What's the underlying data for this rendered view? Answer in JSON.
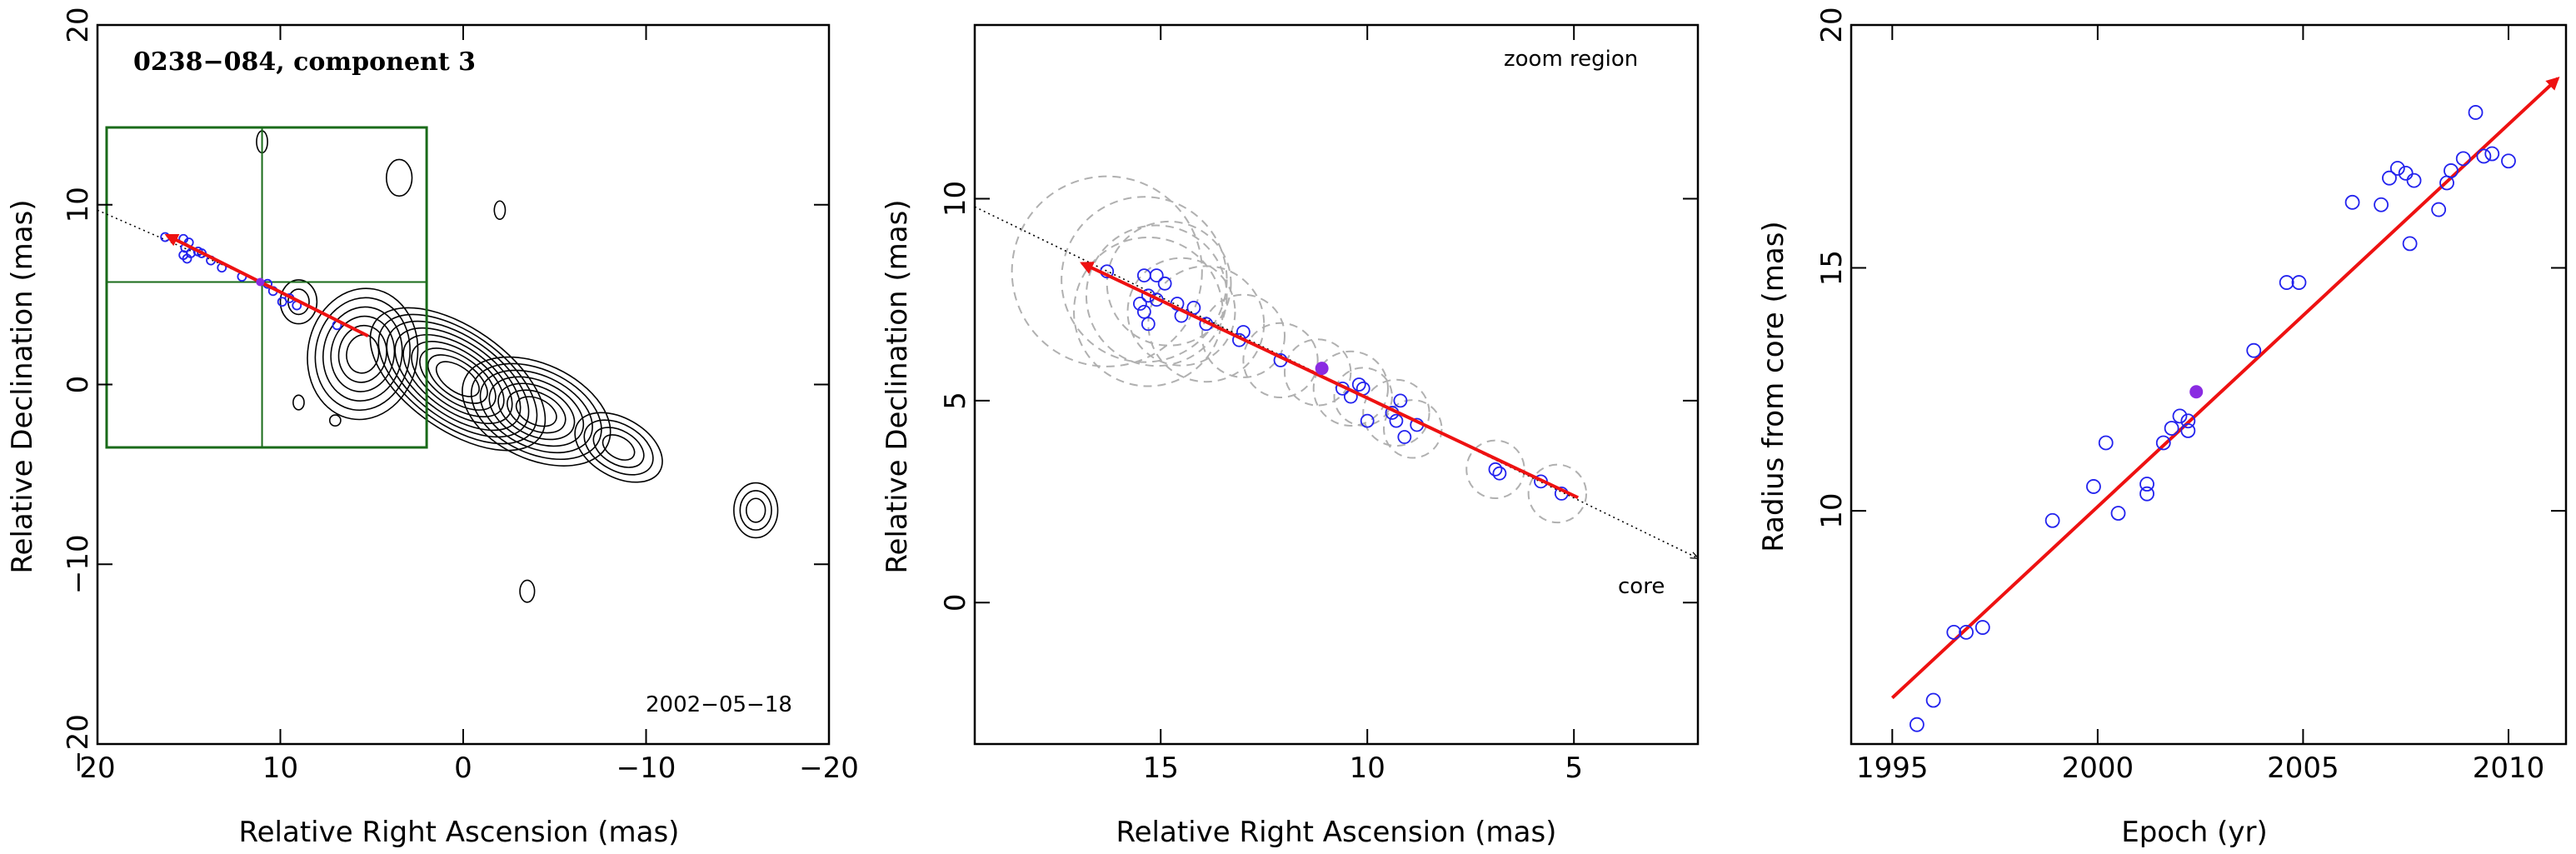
{
  "chart_data": [
    {
      "type": "scatter",
      "panel": "contour-map",
      "title": "0238−084, component 3",
      "date_label": "2002−05−18",
      "xlabel": "Relative Right Ascension (mas)",
      "ylabel": "Relative Declination (mas)",
      "xlim": [
        20,
        -20
      ],
      "ylim": [
        -20,
        20
      ],
      "xticks": [
        20,
        10,
        0,
        -10,
        -20
      ],
      "xtick_labels": [
        "20",
        "10",
        "0",
        "−10",
        "−20"
      ],
      "yticks": [
        -20,
        -10,
        0,
        10,
        20
      ],
      "ytick_labels": [
        "−20",
        "−10",
        "0",
        "10",
        "20"
      ],
      "zoom_box": {
        "x": [
          19.5,
          2
        ],
        "y": [
          -3.5,
          14.3
        ]
      },
      "zoom_cross": {
        "x": 11,
        "y": 5.7
      },
      "jet_line": {
        "from": [
          20,
          9.7
        ],
        "to": [
          11,
          5.7
        ]
      },
      "direction_arrow": {
        "from": [
          5.2,
          2.7
        ],
        "to": [
          16.2,
          8.3
        ]
      },
      "positions": [
        {
          "x": 16.3,
          "y": 8.2
        },
        {
          "x": 15.3,
          "y": 8.1
        },
        {
          "x": 15.2,
          "y": 7.6
        },
        {
          "x": 15.0,
          "y": 7.9
        },
        {
          "x": 14.9,
          "y": 7.3
        },
        {
          "x": 15.1,
          "y": 7.0
        },
        {
          "x": 15.3,
          "y": 7.2
        },
        {
          "x": 14.5,
          "y": 7.4
        },
        {
          "x": 14.3,
          "y": 7.3
        },
        {
          "x": 13.8,
          "y": 6.9
        },
        {
          "x": 13.2,
          "y": 6.5
        },
        {
          "x": 12.1,
          "y": 6.0
        },
        {
          "x": 10.7,
          "y": 5.6
        },
        {
          "x": 10.4,
          "y": 5.2
        },
        {
          "x": 9.9,
          "y": 4.6
        },
        {
          "x": 9.5,
          "y": 4.8
        },
        {
          "x": 9.1,
          "y": 4.4
        },
        {
          "x": 6.9,
          "y": 3.3
        }
      ],
      "highlight": {
        "x": 11.1,
        "y": 5.7
      },
      "contours": [
        {
          "cx": 0.3,
          "cy": 0.3,
          "rx": 5.5,
          "ry": 2.8,
          "rot": 35,
          "levels": 9
        },
        {
          "cx": -4.0,
          "cy": -1.5,
          "rx": 4.3,
          "ry": 2.6,
          "rot": 25,
          "levels": 7
        },
        {
          "cx": 5.5,
          "cy": 1.7,
          "rx": 3.0,
          "ry": 3.6,
          "rot": 10,
          "levels": 6
        },
        {
          "cx": -8.5,
          "cy": -3.5,
          "rx": 2.6,
          "ry": 1.6,
          "rot": 30,
          "levels": 4
        },
        {
          "cx": -16.0,
          "cy": -7.0,
          "rx": 1.2,
          "ry": 1.5,
          "rot": 0,
          "levels": 3
        },
        {
          "cx": 9.0,
          "cy": 4.6,
          "rx": 1.0,
          "ry": 1.2,
          "rot": 0,
          "levels": 2
        },
        {
          "cx": 3.5,
          "cy": 11.5,
          "rx": 0.7,
          "ry": 1.0,
          "rot": 0,
          "levels": 1
        },
        {
          "cx": 11.0,
          "cy": 13.5,
          "rx": 0.3,
          "ry": 0.6,
          "rot": 0,
          "levels": 1
        },
        {
          "cx": -2.0,
          "cy": 9.7,
          "rx": 0.3,
          "ry": 0.5,
          "rot": 0,
          "levels": 1
        },
        {
          "cx": -3.5,
          "cy": -11.5,
          "rx": 0.4,
          "ry": 0.6,
          "rot": 0,
          "levels": 1
        },
        {
          "cx": 9.0,
          "cy": -1.0,
          "rx": 0.3,
          "ry": 0.4,
          "rot": 0,
          "levels": 1
        },
        {
          "cx": 7.0,
          "cy": -2.0,
          "rx": 0.3,
          "ry": 0.3,
          "rot": 0,
          "levels": 1
        }
      ]
    },
    {
      "type": "scatter",
      "panel": "zoom-region",
      "annotation_zoom": "zoom region",
      "annotation_core": "core",
      "xlabel": "Relative Right Ascension (mas)",
      "ylabel": "Relative Declination (mas)",
      "xlim": [
        19.5,
        2
      ],
      "ylim": [
        -3.5,
        14.3
      ],
      "xticks": [
        15,
        10,
        5
      ],
      "xtick_labels": [
        "15",
        "10",
        "5"
      ],
      "yticks": [
        0,
        5,
        10
      ],
      "ytick_labels": [
        "0",
        "5",
        "10"
      ],
      "jet_line": {
        "from": [
          19.5,
          9.8
        ],
        "to": [
          2.0,
          1.1
        ]
      },
      "direction_arrow": {
        "from": [
          4.9,
          2.6
        ],
        "to": [
          16.9,
          8.4
        ]
      },
      "positions": [
        {
          "x": 16.3,
          "y": 8.2
        },
        {
          "x": 15.4,
          "y": 8.1
        },
        {
          "x": 15.1,
          "y": 8.1
        },
        {
          "x": 14.9,
          "y": 7.9
        },
        {
          "x": 15.3,
          "y": 7.6
        },
        {
          "x": 15.5,
          "y": 7.4
        },
        {
          "x": 15.4,
          "y": 7.2
        },
        {
          "x": 15.1,
          "y": 7.5
        },
        {
          "x": 14.6,
          "y": 7.4
        },
        {
          "x": 14.5,
          "y": 7.1
        },
        {
          "x": 15.3,
          "y": 6.9
        },
        {
          "x": 14.2,
          "y": 7.3
        },
        {
          "x": 13.9,
          "y": 6.9
        },
        {
          "x": 13.1,
          "y": 6.5
        },
        {
          "x": 13.0,
          "y": 6.7
        },
        {
          "x": 12.1,
          "y": 6.0
        },
        {
          "x": 10.6,
          "y": 5.3
        },
        {
          "x": 10.2,
          "y": 5.4
        },
        {
          "x": 10.1,
          "y": 5.3
        },
        {
          "x": 10.4,
          "y": 5.1
        },
        {
          "x": 10.0,
          "y": 4.5
        },
        {
          "x": 9.2,
          "y": 5.0
        },
        {
          "x": 9.4,
          "y": 4.7
        },
        {
          "x": 9.3,
          "y": 4.5
        },
        {
          "x": 8.8,
          "y": 4.4
        },
        {
          "x": 9.1,
          "y": 4.1
        },
        {
          "x": 6.9,
          "y": 3.3
        },
        {
          "x": 6.8,
          "y": 3.2
        },
        {
          "x": 5.8,
          "y": 3.0
        },
        {
          "x": 5.3,
          "y": 2.7
        }
      ],
      "highlight": {
        "x": 11.1,
        "y": 5.8
      },
      "uncertainty_circles": [
        {
          "x": 16.3,
          "y": 8.2,
          "r": 2.3
        },
        {
          "x": 15.4,
          "y": 8.0,
          "r": 2.0
        },
        {
          "x": 15.1,
          "y": 7.6,
          "r": 1.7
        },
        {
          "x": 14.8,
          "y": 7.9,
          "r": 1.5
        },
        {
          "x": 15.3,
          "y": 7.2,
          "r": 1.8
        },
        {
          "x": 14.5,
          "y": 7.2,
          "r": 1.3
        },
        {
          "x": 13.9,
          "y": 6.9,
          "r": 1.4
        },
        {
          "x": 13.0,
          "y": 6.6,
          "r": 1.0
        },
        {
          "x": 12.1,
          "y": 6.0,
          "r": 0.9
        },
        {
          "x": 11.2,
          "y": 5.7,
          "r": 0.8
        },
        {
          "x": 10.4,
          "y": 5.3,
          "r": 0.9
        },
        {
          "x": 10.1,
          "y": 5.1,
          "r": 0.7
        },
        {
          "x": 9.3,
          "y": 4.7,
          "r": 0.8
        },
        {
          "x": 8.9,
          "y": 4.3,
          "r": 0.7
        },
        {
          "x": 6.9,
          "y": 3.3,
          "r": 0.7
        },
        {
          "x": 5.4,
          "y": 2.7,
          "r": 0.7
        }
      ]
    },
    {
      "type": "scatter",
      "panel": "radius-vs-epoch",
      "xlabel": "Epoch (yr)",
      "ylabel": "Radius from core (mas)",
      "xlim": [
        1994,
        2011.4
      ],
      "ylim": [
        5.2,
        20
      ],
      "xticks": [
        1995,
        2000,
        2005,
        2010
      ],
      "xtick_labels": [
        "1995",
        "2000",
        "2005",
        "2010"
      ],
      "yticks": [
        10,
        15,
        20
      ],
      "ytick_labels": [
        "10",
        "15",
        "20"
      ],
      "fit_line": {
        "from": [
          1995.0,
          6.15
        ],
        "to": [
          2011.2,
          18.9
        ]
      },
      "points": [
        {
          "x": 1995.6,
          "y": 5.6
        },
        {
          "x": 1996.0,
          "y": 6.1
        },
        {
          "x": 1996.5,
          "y": 7.5
        },
        {
          "x": 1996.8,
          "y": 7.5
        },
        {
          "x": 1997.2,
          "y": 7.6
        },
        {
          "x": 1998.9,
          "y": 9.8
        },
        {
          "x": 1999.9,
          "y": 10.5
        },
        {
          "x": 2000.2,
          "y": 11.4
        },
        {
          "x": 2000.5,
          "y": 9.95
        },
        {
          "x": 2001.2,
          "y": 10.55
        },
        {
          "x": 2001.2,
          "y": 10.35
        },
        {
          "x": 2001.6,
          "y": 11.4
        },
        {
          "x": 2001.8,
          "y": 11.7
        },
        {
          "x": 2002.0,
          "y": 11.95
        },
        {
          "x": 2002.2,
          "y": 11.85
        },
        {
          "x": 2002.2,
          "y": 11.65
        },
        {
          "x": 2003.8,
          "y": 13.3
        },
        {
          "x": 2004.6,
          "y": 14.7
        },
        {
          "x": 2004.9,
          "y": 14.7
        },
        {
          "x": 2006.2,
          "y": 16.35
        },
        {
          "x": 2006.9,
          "y": 16.3
        },
        {
          "x": 2007.1,
          "y": 16.85
        },
        {
          "x": 2007.3,
          "y": 17.05
        },
        {
          "x": 2007.5,
          "y": 16.95
        },
        {
          "x": 2007.7,
          "y": 16.8
        },
        {
          "x": 2007.6,
          "y": 15.5
        },
        {
          "x": 2008.3,
          "y": 16.2
        },
        {
          "x": 2008.5,
          "y": 16.75
        },
        {
          "x": 2008.6,
          "y": 17.0
        },
        {
          "x": 2008.9,
          "y": 17.25
        },
        {
          "x": 2009.2,
          "y": 18.2
        },
        {
          "x": 2009.4,
          "y": 17.3
        },
        {
          "x": 2009.6,
          "y": 17.35
        },
        {
          "x": 2010.0,
          "y": 17.2
        }
      ],
      "highlight": {
        "x": 2002.4,
        "y": 12.45
      }
    }
  ],
  "colors": {
    "axis": "#000000",
    "point": "#2222ee",
    "highlight": "#8a2be2",
    "arrow": "#ee1111",
    "zoom_box": "#1a6b1a",
    "contour": "#000000",
    "uncertainty": "#b0b0b0"
  }
}
